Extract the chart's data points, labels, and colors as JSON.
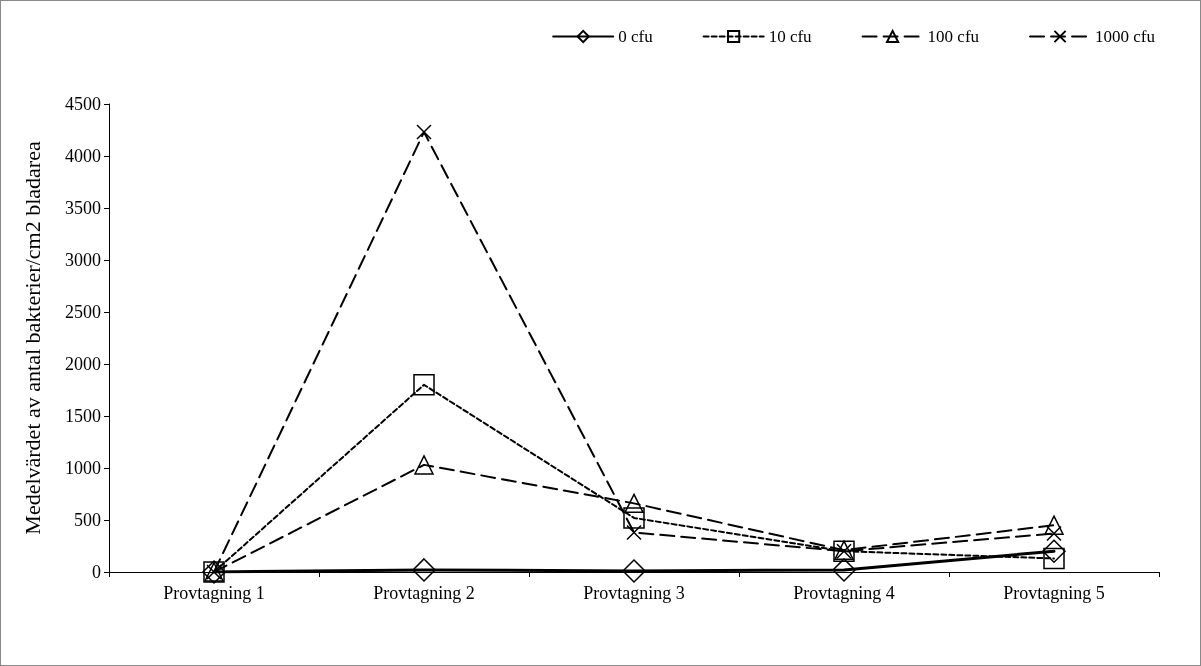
{
  "chart_data": {
    "type": "line",
    "ylabel": "Medelvärdet av antal bakterier/cm2 bladarea",
    "categories": [
      "Provtagning 1",
      "Provtagning 2",
      "Provtagning 3",
      "Provtagning 4",
      "Provtagning 5"
    ],
    "series": [
      {
        "name": "0 cfu",
        "color": "#000000",
        "values": [
          0,
          20,
          10,
          20,
          200
        ],
        "marker": "diamond",
        "line_style": "solid"
      },
      {
        "name": "10 cfu",
        "color": "#000000",
        "values": [
          0,
          1800,
          520,
          200,
          130
        ],
        "marker": "square",
        "line_style": "dotted"
      },
      {
        "name": "100 cfu",
        "color": "#000000",
        "values": [
          0,
          1030,
          660,
          210,
          450
        ],
        "marker": "triangle",
        "line_style": "dashed"
      },
      {
        "name": "1000 cfu",
        "color": "#000000",
        "values": [
          0,
          4230,
          380,
          200,
          370
        ],
        "marker": "cross",
        "line_style": "dashed"
      }
    ],
    "ylim": [
      0,
      4500
    ],
    "yticks": [
      0,
      500,
      1000,
      1500,
      2000,
      2500,
      3000,
      3500,
      4000,
      4500
    ],
    "grid": false,
    "legend": "top right"
  }
}
